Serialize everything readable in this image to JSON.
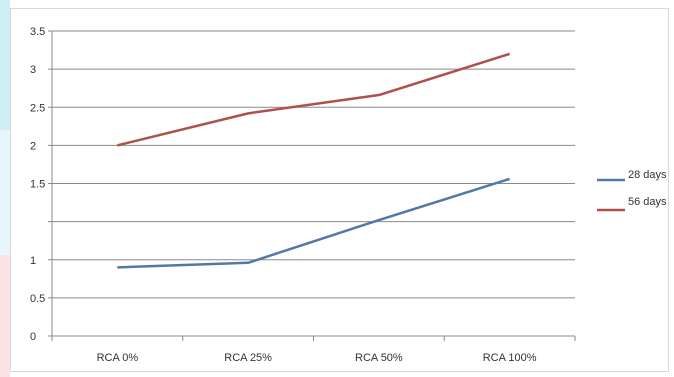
{
  "chart_data": {
    "type": "line",
    "categories": [
      "RCA 0%",
      "RCA 25%",
      "RCA 50%",
      "RCA 100%"
    ],
    "y_tick_labels": [
      "0",
      "0.5",
      "1",
      "",
      "1.5",
      "2",
      "2.5",
      "3",
      "3.5"
    ],
    "series": [
      {
        "name": "28 days",
        "color": "#4f7aa7",
        "values": [
          0.9,
          0.96,
          1.26,
          1.56
        ]
      },
      {
        "name": "56 days",
        "color": "#b0504d",
        "values": [
          2.0,
          2.42,
          2.66,
          3.2
        ]
      }
    ],
    "grid": true,
    "legend": "right",
    "title": "",
    "xlabel": "",
    "ylabel": ""
  }
}
